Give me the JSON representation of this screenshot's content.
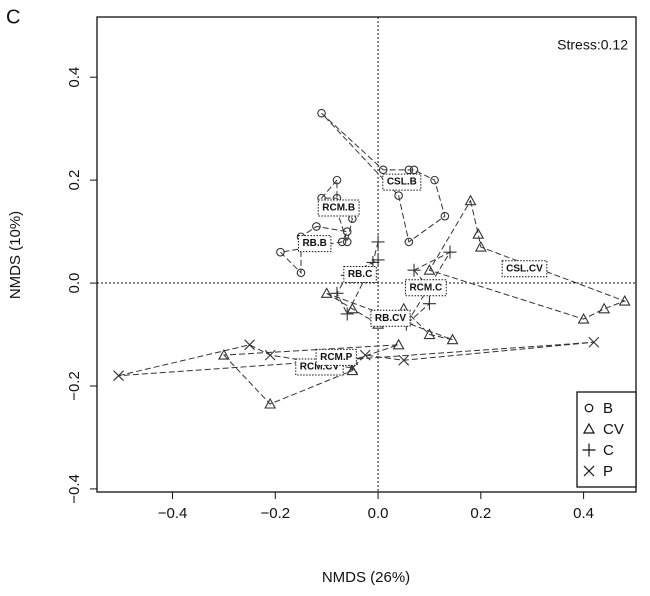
{
  "chart_data": {
    "type": "scatter",
    "panel_label": "C",
    "annotation": "Stress:0.12",
    "xlabel": "NMDS (26%)",
    "ylabel": "NMDS (10%)",
    "xlim": [
      -0.547,
      0.502
    ],
    "ylim": [
      -0.406,
      0.517
    ],
    "xticks": [
      {
        "value": -0.4,
        "label": "−0.4"
      },
      {
        "value": -0.2,
        "label": "−0.2"
      },
      {
        "value": 0,
        "label": "0.0"
      },
      0.2,
      0.4
    ],
    "yticks": [
      {
        "value": -0.4,
        "label": "−0.4"
      },
      {
        "value": -0.2,
        "label": "−0.2"
      },
      {
        "value": 0,
        "label": "0.0"
      },
      0.2,
      0.4
    ],
    "reference_x": 0,
    "reference_y": 0,
    "legend_position": "lower right",
    "color": "#333333",
    "legend": [
      {
        "name": "B",
        "marker": "circle"
      },
      {
        "name": "CV",
        "marker": "triangle"
      },
      {
        "name": "C",
        "marker": "plus"
      },
      {
        "name": "P",
        "marker": "cross"
      }
    ],
    "series": [
      {
        "name": "CSL.B",
        "marker": "circle",
        "x": [
          -0.11,
          0.01,
          0.06,
          0.07,
          0.11,
          0.13,
          0.06,
          0.04
        ],
        "y": [
          0.33,
          0.22,
          0.22,
          0.22,
          0.2,
          0.13,
          0.08,
          0.17
        ]
      },
      {
        "name": "RCM.B",
        "marker": "circle",
        "x": [
          -0.08,
          -0.11,
          -0.08,
          -0.05,
          -0.06,
          -0.08
        ],
        "y": [
          0.2,
          0.165,
          0.165,
          0.125,
          0.08,
          0.14
        ]
      },
      {
        "name": "RB.B",
        "marker": "circle",
        "x": [
          -0.19,
          -0.15,
          -0.15,
          -0.12,
          -0.06,
          -0.07
        ],
        "y": [
          0.06,
          0.02,
          0.09,
          0.11,
          0.1,
          0.08
        ]
      },
      {
        "name": "CSL.CV",
        "marker": "triangle",
        "x": [
          0.18,
          0.195,
          0.2,
          0.48,
          0.44,
          0.4,
          0.1
        ],
        "y": [
          0.16,
          0.095,
          0.07,
          -0.035,
          -0.05,
          -0.07,
          0.025
        ]
      },
      {
        "name": "RB.CV",
        "marker": "triangle",
        "x": [
          -0.1,
          -0.05,
          0.0,
          0.05,
          0.1,
          0.145
        ],
        "y": [
          -0.02,
          -0.05,
          -0.08,
          -0.05,
          -0.1,
          -0.11
        ]
      },
      {
        "name": "RCM.CV",
        "marker": "triangle",
        "x": [
          -0.3,
          -0.21,
          -0.05,
          -0.05,
          0.04
        ],
        "y": [
          -0.14,
          -0.235,
          -0.17,
          -0.15,
          -0.12
        ]
      },
      {
        "name": "RB.C",
        "marker": "plus",
        "x": [
          -0.06,
          -0.08,
          -0.06,
          -0.01,
          0.0,
          0.0
        ],
        "y": [
          0.015,
          -0.02,
          -0.06,
          0.04,
          0.08,
          0.045
        ]
      },
      {
        "name": "RCM.C",
        "marker": "plus",
        "x": [
          0.07,
          0.1,
          0.1,
          0.055,
          0.14
        ],
        "y": [
          0.025,
          -0.01,
          -0.04,
          -0.08,
          0.06
        ]
      },
      {
        "name": "RCM.P",
        "marker": "cross",
        "x": [
          -0.505,
          -0.25,
          -0.21,
          -0.05,
          -0.025,
          0.05,
          0.42
        ],
        "y": [
          -0.18,
          -0.12,
          -0.14,
          -0.165,
          -0.14,
          -0.15,
          -0.115
        ]
      }
    ]
  }
}
